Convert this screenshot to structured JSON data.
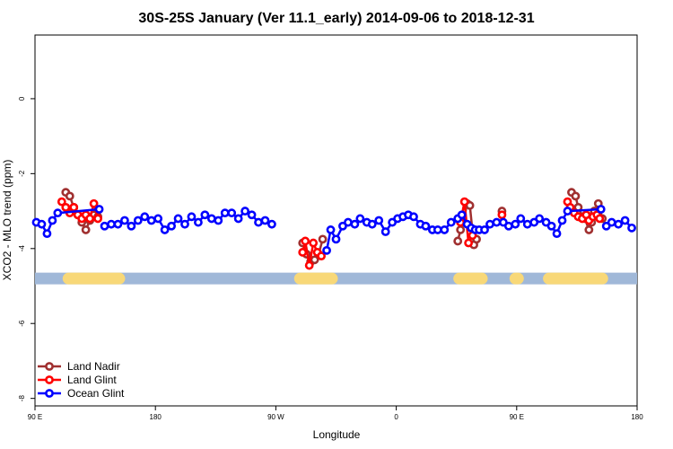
{
  "chart_data": {
    "type": "line",
    "title": "30S-25S January (Ver 11.1_early)   2014-09-06 to 2018-12-31",
    "xlabel": "Longitude",
    "ylabel": "XCO2 - MLO trend (ppm)",
    "xlim": [
      90,
      540
    ],
    "ylim": [
      -8.2,
      1.7
    ],
    "x_ticks": [
      {
        "value": 90,
        "label": "90 E"
      },
      {
        "value": 180,
        "label": "180"
      },
      {
        "value": 270,
        "label": "90 W"
      },
      {
        "value": 360,
        "label": "0"
      },
      {
        "value": 450,
        "label": "90 E"
      },
      {
        "value": 540,
        "label": "180"
      }
    ],
    "y_ticks": [
      {
        "value": 0,
        "label": "0"
      },
      {
        "value": -2,
        "label": "-2"
      },
      {
        "value": -4,
        "label": "-4"
      },
      {
        "value": -6,
        "label": "-6"
      },
      {
        "value": -8,
        "label": "-8"
      }
    ],
    "grid": false,
    "legend_position": "bottom-left",
    "land_band": {
      "y": -4.8,
      "ocean_color": "#a0b8d8",
      "land_color": "#f8d878",
      "land_segments": [
        [
          115,
          153
        ],
        [
          288,
          312
        ],
        [
          407,
          424
        ],
        [
          449,
          451
        ],
        [
          474,
          514
        ]
      ]
    },
    "series": [
      {
        "name": "Land Nadir",
        "color": "#a03030",
        "segments": [
          [
            [
              113,
              -2.5
            ],
            [
              116,
              -2.6
            ],
            [
              119,
              -2.9
            ],
            [
              122,
              -3.1
            ],
            [
              125,
              -3.3
            ],
            [
              128,
              -3.5
            ],
            [
              131,
              -3.25
            ],
            [
              134,
              -3.1
            ],
            [
              137,
              -3.15
            ]
          ],
          [
            [
              290,
              -3.85
            ],
            [
              293,
              -4.15
            ],
            [
              296,
              -4.35
            ],
            [
              299,
              -4.3
            ],
            [
              302,
              -4.15
            ],
            [
              305,
              -3.75
            ]
          ],
          [
            [
              406,
              -3.8
            ],
            [
              408,
              -3.5
            ],
            [
              410,
              -3.3
            ],
            [
              413,
              -2.8
            ],
            [
              415,
              -2.85
            ],
            [
              418,
              -3.9
            ],
            [
              420,
              -3.75
            ]
          ],
          [
            [
              439,
              -3.0
            ]
          ],
          [
            [
              491,
              -2.5
            ],
            [
              494,
              -2.6
            ],
            [
              496,
              -2.9
            ],
            [
              499,
              -3.15
            ],
            [
              501,
              -3.2
            ],
            [
              504,
              -3.5
            ],
            [
              506,
              -3.3
            ],
            [
              508,
              -3.0
            ],
            [
              511,
              -2.8
            ],
            [
              514,
              -3.2
            ]
          ]
        ]
      },
      {
        "name": "Land Glint",
        "color": "#ff0000",
        "segments": [
          [
            [
              110,
              -2.75
            ],
            [
              113,
              -2.9
            ],
            [
              116,
              -3.05
            ],
            [
              119,
              -2.9
            ],
            [
              122,
              -3.1
            ],
            [
              125,
              -3.2
            ],
            [
              128,
              -3.1
            ],
            [
              131,
              -3.2
            ],
            [
              134,
              -2.8
            ],
            [
              137,
              -3.2
            ]
          ],
          [
            [
              290,
              -4.1
            ],
            [
              292,
              -3.8
            ],
            [
              295,
              -4.45
            ],
            [
              298,
              -3.85
            ],
            [
              301,
              -4.1
            ],
            [
              304,
              -4.2
            ]
          ],
          [
            [
              408,
              -3.3
            ],
            [
              411,
              -2.75
            ],
            [
              414,
              -3.85
            ],
            [
              417,
              -3.65
            ]
          ],
          [
            [
              439,
              -3.1
            ]
          ],
          [
            [
              488,
              -2.75
            ],
            [
              490,
              -2.9
            ],
            [
              493,
              -3.05
            ],
            [
              496,
              -3.15
            ],
            [
              499,
              -3.2
            ],
            [
              502,
              -3.1
            ],
            [
              504,
              -3.25
            ],
            [
              507,
              -3.15
            ],
            [
              510,
              -3.1
            ],
            [
              512,
              -3.2
            ]
          ]
        ]
      },
      {
        "name": "Ocean Glint",
        "color": "#0000ff",
        "segments": [
          [
            [
              91,
              -3.3
            ],
            [
              95,
              -3.35
            ],
            [
              99,
              -3.6
            ],
            [
              103,
              -3.25
            ],
            [
              107,
              -3.05
            ],
            [
              138,
              -2.95
            ]
          ],
          [
            [
              142,
              -3.4
            ],
            [
              147,
              -3.35
            ],
            [
              152,
              -3.35
            ],
            [
              157,
              -3.25
            ],
            [
              162,
              -3.4
            ],
            [
              167,
              -3.25
            ],
            [
              172,
              -3.15
            ],
            [
              177,
              -3.25
            ],
            [
              182,
              -3.2
            ],
            [
              187,
              -3.5
            ],
            [
              192,
              -3.4
            ],
            [
              197,
              -3.2
            ],
            [
              202,
              -3.35
            ],
            [
              207,
              -3.15
            ],
            [
              212,
              -3.3
            ],
            [
              217,
              -3.1
            ],
            [
              222,
              -3.2
            ],
            [
              227,
              -3.25
            ],
            [
              232,
              -3.05
            ],
            [
              237,
              -3.05
            ],
            [
              242,
              -3.2
            ],
            [
              247,
              -3.0
            ],
            [
              252,
              -3.1
            ],
            [
              257,
              -3.3
            ],
            [
              262,
              -3.25
            ],
            [
              267,
              -3.35
            ]
          ],
          [
            [
              308,
              -4.05
            ],
            [
              311,
              -3.5
            ],
            [
              315,
              -3.75
            ],
            [
              320,
              -3.4
            ],
            [
              324,
              -3.3
            ],
            [
              329,
              -3.35
            ],
            [
              333,
              -3.2
            ],
            [
              338,
              -3.3
            ],
            [
              342,
              -3.35
            ],
            [
              347,
              -3.25
            ],
            [
              352,
              -3.55
            ],
            [
              357,
              -3.3
            ],
            [
              361,
              -3.2
            ],
            [
              365,
              -3.15
            ],
            [
              369,
              -3.1
            ],
            [
              373,
              -3.15
            ],
            [
              378,
              -3.35
            ],
            [
              382,
              -3.4
            ],
            [
              387,
              -3.5
            ],
            [
              391,
              -3.5
            ],
            [
              396,
              -3.5
            ],
            [
              401,
              -3.3
            ],
            [
              406,
              -3.2
            ]
          ],
          [
            [
              409,
              -3.1
            ],
            [
              413,
              -3.35
            ],
            [
              416,
              -3.45
            ],
            [
              419,
              -3.5
            ],
            [
              422,
              -3.5
            ],
            [
              426,
              -3.5
            ],
            [
              430,
              -3.35
            ],
            [
              435,
              -3.3
            ],
            [
              440,
              -3.3
            ],
            [
              444,
              -3.4
            ],
            [
              449,
              -3.35
            ],
            [
              453,
              -3.2
            ],
            [
              458,
              -3.35
            ],
            [
              463,
              -3.3
            ],
            [
              467,
              -3.2
            ],
            [
              472,
              -3.3
            ],
            [
              476,
              -3.4
            ],
            [
              480,
              -3.6
            ],
            [
              484,
              -3.25
            ],
            [
              488,
              -3.0
            ],
            [
              513,
              -2.95
            ]
          ],
          [
            [
              517,
              -3.4
            ],
            [
              521,
              -3.3
            ],
            [
              526,
              -3.35
            ],
            [
              531,
              -3.25
            ],
            [
              536,
              -3.45
            ]
          ]
        ]
      }
    ]
  }
}
